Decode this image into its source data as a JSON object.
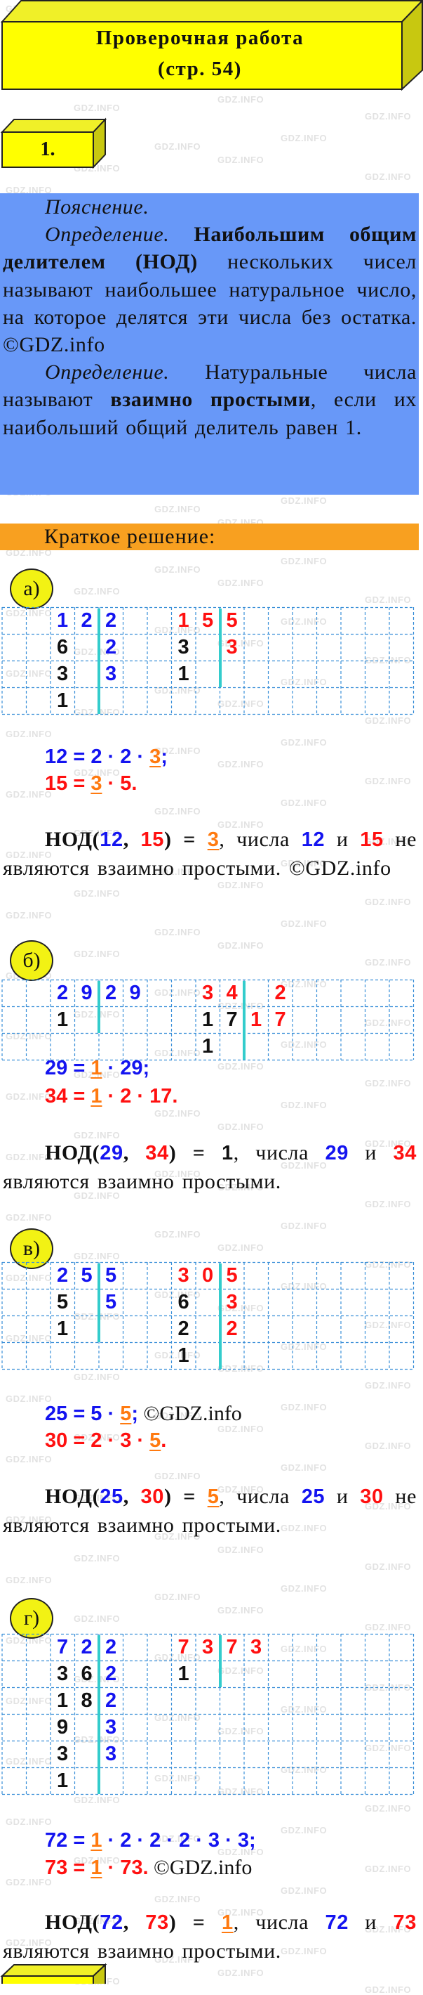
{
  "watermark": "GDZ.INFO",
  "colors": {
    "yellow": "#ffff00",
    "explanation_bg": "#6898f8",
    "brief_bar": "#f8a020",
    "blue": "#1414f0",
    "red": "#ff1010",
    "orange": "#ff7a10",
    "bar": "#33cccc",
    "grid": "#3a8fd8"
  },
  "header": {
    "title_line1": "Проверочная работа",
    "title_line2": "(стр. 54)"
  },
  "task_number": "1.",
  "explanation": {
    "heading": "Пояснение.",
    "def1_label": "Определение.",
    "def1_bold": "Наибольшим общим делителем (НОД)",
    "def1_text": " нескольких чисел называют наибольшее натуральное число, на которое делятся эти числа без остатка. ©GDZ.info",
    "def2_label": "Определение.",
    "def2_text1": " Натуральные числа называют ",
    "def2_bold": "взаимно простыми",
    "def2_text2": ", если их наибольший общий делитель равен 1."
  },
  "brief_solution_label": "Краткое решение:",
  "problems": [
    {
      "label": "а)",
      "divisions": [
        {
          "color": "blue",
          "dividends": [
            "12",
            "6",
            "3",
            "1"
          ],
          "divisors": [
            "2",
            "2",
            "3"
          ]
        },
        {
          "color": "red",
          "dividends": [
            "15",
            "3",
            "1"
          ],
          "divisors": [
            "5",
            "3"
          ]
        }
      ],
      "equations": [
        [
          {
            "t": "12",
            "c": "blue"
          },
          {
            "t": " = 2 · 2 · ",
            "c": "blue"
          },
          {
            "t": "3",
            "c": "orange",
            "u": true
          },
          {
            "t": ";",
            "c": "blue"
          }
        ],
        [
          {
            "t": "15 = ",
            "c": "red"
          },
          {
            "t": "3",
            "c": "orange",
            "u": true
          },
          {
            "t": " · 5.",
            "c": "red"
          }
        ]
      ],
      "conclusion": [
        {
          "t": "НОД(",
          "c": "black",
          "b": "s"
        },
        {
          "t": "12",
          "c": "blue",
          "b": "n"
        },
        {
          "t": ", ",
          "c": "black",
          "b": "s"
        },
        {
          "t": "15",
          "c": "red",
          "b": "n"
        },
        {
          "t": ") = ",
          "c": "black",
          "b": "s"
        },
        {
          "t": "3",
          "c": "orange",
          "b": "n",
          "u": true
        },
        {
          "t": ", числа ",
          "c": "black"
        },
        {
          "t": "12",
          "c": "blue",
          "b": "n"
        },
        {
          "t": " и ",
          "c": "black"
        },
        {
          "t": "15",
          "c": "red",
          "b": "n"
        },
        {
          "t": " не являются взаимно просты­ми. ©GDZ.info",
          "c": "black"
        }
      ]
    },
    {
      "label": "б)",
      "divisions": [
        {
          "color": "blue",
          "dividends": [
            "29",
            "1"
          ],
          "divisors": [
            "29"
          ]
        },
        {
          "color": "red",
          "dividends": [
            "34",
            "17",
            "1"
          ],
          "divisors": [
            "2",
            "17"
          ]
        }
      ],
      "equations": [
        [
          {
            "t": "29 = ",
            "c": "blue"
          },
          {
            "t": "1",
            "c": "orange",
            "u": true
          },
          {
            "t": " · 29;",
            "c": "blue"
          }
        ],
        [
          {
            "t": "34 = ",
            "c": "red"
          },
          {
            "t": "1",
            "c": "orange",
            "u": true
          },
          {
            "t": " · 2 · 17.",
            "c": "red"
          }
        ]
      ],
      "conclusion": [
        {
          "t": "НОД(",
          "c": "black",
          "b": "s"
        },
        {
          "t": "29",
          "c": "blue",
          "b": "n"
        },
        {
          "t": ", ",
          "c": "black",
          "b": "s"
        },
        {
          "t": "34",
          "c": "red",
          "b": "n"
        },
        {
          "t": ") = ",
          "c": "black",
          "b": "s"
        },
        {
          "t": "1",
          "c": "black",
          "b": "n"
        },
        {
          "t": ", числа ",
          "c": "black"
        },
        {
          "t": "29",
          "c": "blue",
          "b": "n"
        },
        {
          "t": " и ",
          "c": "black"
        },
        {
          "t": "34",
          "c": "red",
          "b": "n"
        },
        {
          "t": " являются взаимно простыми.",
          "c": "black"
        }
      ]
    },
    {
      "label": "в)",
      "divisions": [
        {
          "color": "blue",
          "dividends": [
            "25",
            "5",
            "1"
          ],
          "divisors": [
            "5",
            "5"
          ]
        },
        {
          "color": "red",
          "dividends": [
            "30",
            "6",
            "2",
            "1"
          ],
          "divisors": [
            "5",
            "3",
            "2"
          ]
        }
      ],
      "equations": [
        [
          {
            "t": "25 = 5 · ",
            "c": "blue"
          },
          {
            "t": "5",
            "c": "orange",
            "u": true
          },
          {
            "t": ";",
            "c": "blue"
          },
          {
            "t": " ©GDZ.info",
            "c": "plain"
          }
        ],
        [
          {
            "t": "30 = 2 · 3 · ",
            "c": "red"
          },
          {
            "t": "5",
            "c": "orange",
            "u": true
          },
          {
            "t": ".",
            "c": "red"
          }
        ]
      ],
      "conclusion": [
        {
          "t": "НОД(",
          "c": "black",
          "b": "s"
        },
        {
          "t": "25",
          "c": "blue",
          "b": "n"
        },
        {
          "t": ", ",
          "c": "black",
          "b": "s"
        },
        {
          "t": "30",
          "c": "red",
          "b": "n"
        },
        {
          "t": ") = ",
          "c": "black",
          "b": "s"
        },
        {
          "t": "5",
          "c": "orange",
          "b": "n",
          "u": true
        },
        {
          "t": ", числа ",
          "c": "black"
        },
        {
          "t": "25",
          "c": "blue",
          "b": "n"
        },
        {
          "t": " и ",
          "c": "black"
        },
        {
          "t": "30",
          "c": "red",
          "b": "n"
        },
        {
          "t": " не являются взаимно просты­ми.",
          "c": "black"
        }
      ]
    },
    {
      "label": "г)",
      "divisions": [
        {
          "color": "blue",
          "dividends": [
            "72",
            "36",
            "18",
            "9",
            "3",
            "1"
          ],
          "divisors": [
            "2",
            "2",
            "2",
            "3",
            "3"
          ]
        },
        {
          "color": "red",
          "dividends": [
            "73",
            "1"
          ],
          "divisors": [
            "73"
          ]
        }
      ],
      "equations": [
        [
          {
            "t": "72 = ",
            "c": "blue"
          },
          {
            "t": "1",
            "c": "orange",
            "u": true
          },
          {
            "t": " · 2 · 2 · 2 · 3 · 3;",
            "c": "blue"
          }
        ],
        [
          {
            "t": "73 = ",
            "c": "red"
          },
          {
            "t": "1",
            "c": "orange",
            "u": true
          },
          {
            "t": " · 73.",
            "c": "red"
          },
          {
            "t": " ©GDZ.info",
            "c": "plain"
          }
        ]
      ],
      "conclusion": [
        {
          "t": "НОД(",
          "c": "black",
          "b": "s"
        },
        {
          "t": "72",
          "c": "blue",
          "b": "n"
        },
        {
          "t": ", ",
          "c": "black",
          "b": "s"
        },
        {
          "t": "73",
          "c": "red",
          "b": "n"
        },
        {
          "t": ") = ",
          "c": "black",
          "b": "s"
        },
        {
          "t": "1",
          "c": "orange",
          "b": "n",
          "u": true
        },
        {
          "t": ", числа ",
          "c": "black"
        },
        {
          "t": "72",
          "c": "blue",
          "b": "n"
        },
        {
          "t": " и ",
          "c": "black"
        },
        {
          "t": "73",
          "c": "red",
          "b": "n"
        },
        {
          "t": " являются взаимно простыми.",
          "c": "black"
        }
      ]
    }
  ]
}
